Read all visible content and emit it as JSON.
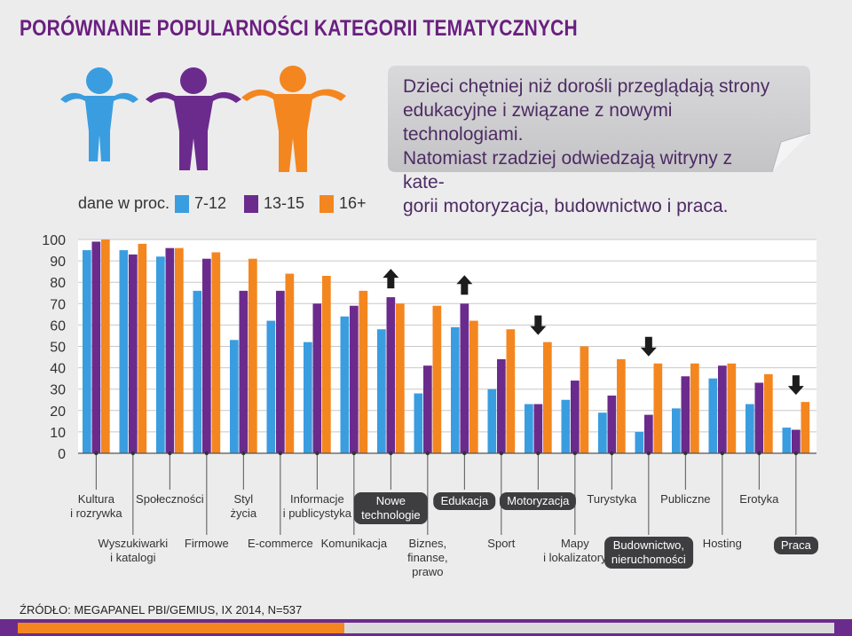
{
  "title": "PORÓWNANIE POPULARNOŚCI KATEGORII TEMATYCZNYCH",
  "callout": "Dzieci chętniej niż dorośli przeglądają strony\nedukacyjne i związane z nowymi technologiami.\nNatomiast rzadziej odwiedzają witryny z kate-\ngorii motoryzacja, budownictwo i praca.",
  "legend": {
    "title": "dane w proc.",
    "items": [
      {
        "label": "7-12",
        "color": "#3a9de0"
      },
      {
        "label": "13-15",
        "color": "#6b2b8d"
      },
      {
        "label": "16+",
        "color": "#f4861f"
      }
    ]
  },
  "source": "ŹRÓDŁO: MEGAPANEL PBI/GEMIUS, IX 2014, N=537",
  "chart_data": {
    "type": "bar",
    "ylim": [
      0,
      100
    ],
    "yticks": [
      0,
      10,
      20,
      30,
      40,
      50,
      60,
      70,
      80,
      90,
      100
    ],
    "grid": true,
    "categories": [
      "Kultura\ni rozrywka",
      "Wyszukiwarki\ni katalogi",
      "Społeczności",
      "Firmowe",
      "Styl\nżycia",
      "E-commerce",
      "Informacje\ni publicystyka",
      "Komunikacja",
      "Nowe\ntechnologie",
      "Biznes,\nfinanse,\nprawo",
      "Edukacja",
      "Sport",
      "Motoryzacja",
      "Mapy\ni lokalizatory",
      "Turystyka",
      "Budownictwo,\nnieruchomości",
      "Publiczne",
      "Hosting",
      "Erotyka",
      "Praca"
    ],
    "highlighted": [
      "Nowe\ntechnologie",
      "Edukacja",
      "Motoryzacja",
      "Budownictwo,\nnieruchomości",
      "Praca"
    ],
    "arrows": [
      {
        "category": "Nowe\ntechnologie",
        "direction": "up"
      },
      {
        "category": "Edukacja",
        "direction": "up"
      },
      {
        "category": "Motoryzacja",
        "direction": "down"
      },
      {
        "category": "Budownictwo,\nnieruchomości",
        "direction": "down"
      },
      {
        "category": "Praca",
        "direction": "down"
      }
    ],
    "series": [
      {
        "name": "7-12",
        "color": "#3a9de0",
        "values": [
          95,
          95,
          92,
          76,
          53,
          62,
          52,
          64,
          58,
          28,
          59,
          30,
          23,
          25,
          19,
          10,
          21,
          35,
          23,
          12
        ]
      },
      {
        "name": "13-15",
        "color": "#6b2b8d",
        "values": [
          99,
          93,
          96,
          91,
          76,
          76,
          70,
          69,
          73,
          41,
          70,
          44,
          23,
          34,
          27,
          18,
          36,
          41,
          33,
          11
        ]
      },
      {
        "name": "16+",
        "color": "#f4861f",
        "values": [
          100,
          98,
          96,
          94,
          91,
          84,
          83,
          76,
          70,
          69,
          62,
          58,
          52,
          50,
          44,
          42,
          42,
          42,
          37,
          24
        ]
      }
    ]
  }
}
